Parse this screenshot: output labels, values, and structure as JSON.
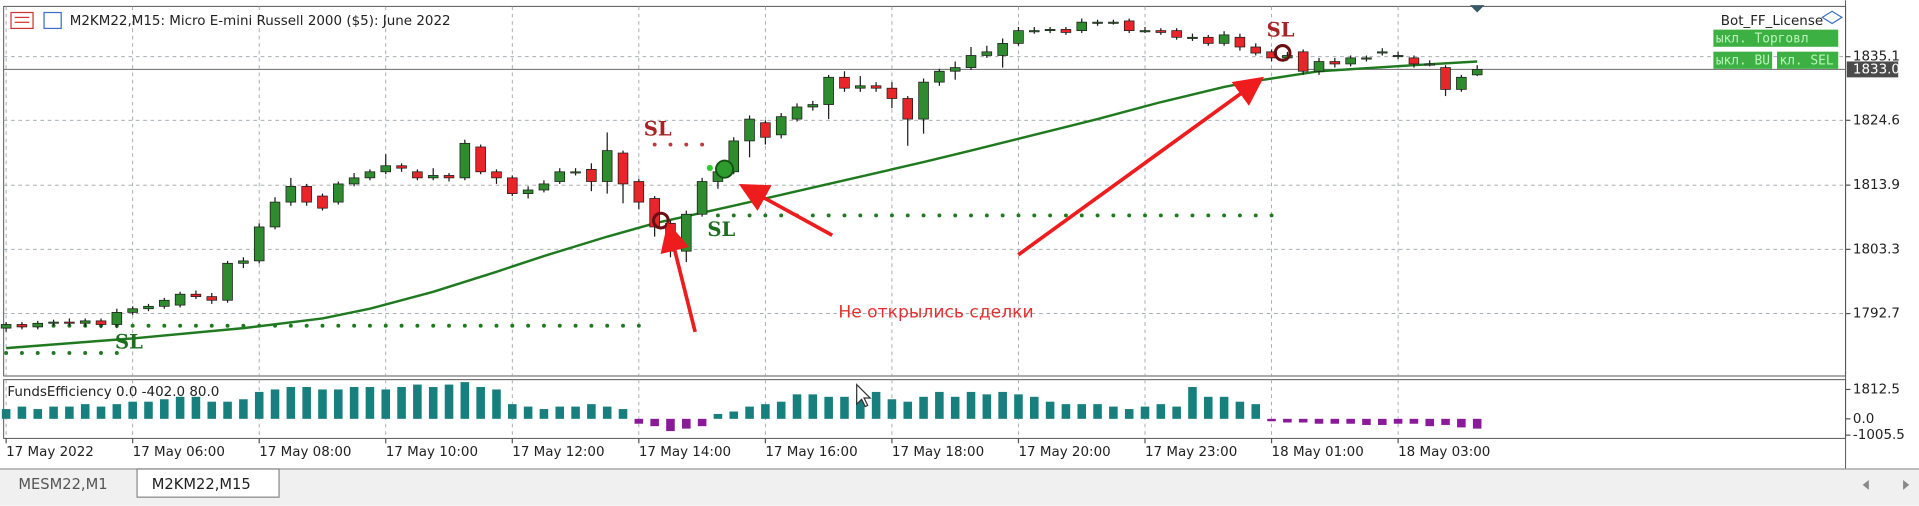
{
  "header": "M2KM22,M15:  Micro E-mini Russell 2000 ($5): June 2022",
  "license": "Bot_FF_License",
  "buttons": [
    "ыкл. Торговл",
    "ыкл. BU",
    "кл. SEL"
  ],
  "annotations": [
    "SL",
    "SL",
    "SL",
    "SL",
    "Не открылись сделки"
  ],
  "tabs": [
    "MESM22,M1",
    "M2KM22,M15"
  ],
  "chart_data": [
    {
      "type": "candlestick",
      "up_color": "#2e8b2e",
      "down_color": "#e8262a",
      "open": [
        1790.3,
        1790.9,
        1790.5,
        1791.1,
        1791.3,
        1791.1,
        1791.5,
        1790.9,
        1792.9,
        1793.5,
        1793.9,
        1794.1,
        1795.9,
        1795.5,
        1794.9,
        1801.0,
        1801.4,
        1807.0,
        1811.1,
        1813.7,
        1812.1,
        1811.1,
        1814.1,
        1815.1,
        1816.1,
        1817.1,
        1816.1,
        1815.1,
        1815.5,
        1815.1,
        1820.2,
        1816.1,
        1815.1,
        1812.5,
        1813.1,
        1814.5,
        1816.1,
        1816.5,
        1814.5,
        1819.2,
        1814.5,
        1811.7,
        1807.6,
        1803.0,
        1809.1,
        1814.5,
        1816.1,
        1821.2,
        1824.2,
        1822.2,
        1824.8,
        1826.8,
        1827.2,
        1831.7,
        1829.9,
        1830.3,
        1829.9,
        1828.2,
        1824.8,
        1830.9,
        1832.7,
        1833.3,
        1835.3,
        1835.3,
        1837.3,
        1839.4,
        1839.4,
        1839.6,
        1839.4,
        1840.8,
        1840.8,
        1841.0,
        1839.4,
        1839.4,
        1839.4,
        1838.3,
        1838.3,
        1837.3,
        1838.3,
        1836.7,
        1835.9,
        1834.9,
        1835.9,
        1832.7,
        1834.3,
        1833.9,
        1834.9,
        1835.9,
        1835.3,
        1834.9,
        1833.9,
        1833.3,
        1829.7,
        1832.1
      ],
      "high": [
        1791.3,
        1791.3,
        1791.5,
        1791.7,
        1791.9,
        1791.9,
        1791.9,
        1793.5,
        1793.9,
        1794.3,
        1795.3,
        1796.3,
        1796.5,
        1796.1,
        1801.4,
        1802.0,
        1807.6,
        1811.9,
        1815.1,
        1814.1,
        1812.5,
        1814.5,
        1815.9,
        1816.5,
        1819.0,
        1817.5,
        1816.5,
        1816.7,
        1815.9,
        1821.4,
        1820.6,
        1816.5,
        1815.5,
        1813.7,
        1814.7,
        1816.7,
        1816.7,
        1817.5,
        1822.6,
        1819.6,
        1814.9,
        1812.1,
        1808.1,
        1809.7,
        1815.1,
        1816.9,
        1821.8,
        1825.4,
        1824.6,
        1825.8,
        1827.4,
        1827.8,
        1832.1,
        1832.7,
        1831.9,
        1830.9,
        1830.9,
        1828.6,
        1831.5,
        1833.1,
        1834.3,
        1836.7,
        1836.9,
        1838.1,
        1840.0,
        1840.0,
        1840.0,
        1840.0,
        1841.4,
        1841.2,
        1841.2,
        1841.4,
        1840.0,
        1839.8,
        1839.8,
        1838.9,
        1838.7,
        1839.3,
        1838.9,
        1837.3,
        1836.3,
        1835.9,
        1836.3,
        1834.9,
        1834.9,
        1835.3,
        1835.3,
        1836.5,
        1835.9,
        1835.3,
        1834.5,
        1833.7,
        1832.1,
        1833.7
      ],
      "low": [
        1789.7,
        1790.1,
        1790.1,
        1790.7,
        1790.7,
        1790.5,
        1790.3,
        1790.3,
        1792.5,
        1793.1,
        1793.5,
        1793.7,
        1795.1,
        1794.3,
        1794.5,
        1800.2,
        1801.0,
        1806.6,
        1810.5,
        1810.5,
        1809.7,
        1810.7,
        1813.7,
        1814.7,
        1815.7,
        1816.1,
        1814.7,
        1814.7,
        1814.5,
        1814.7,
        1815.7,
        1814.1,
        1812.1,
        1811.7,
        1812.7,
        1814.1,
        1815.5,
        1812.9,
        1812.5,
        1810.9,
        1809.9,
        1805.4,
        1802.0,
        1801.2,
        1808.7,
        1813.3,
        1815.7,
        1818.5,
        1820.6,
        1821.6,
        1824.4,
        1826.2,
        1824.8,
        1829.3,
        1829.3,
        1829.3,
        1826.6,
        1820.4,
        1822.4,
        1830.3,
        1831.3,
        1832.9,
        1834.9,
        1833.3,
        1836.9,
        1838.9,
        1839.0,
        1838.7,
        1839.0,
        1840.2,
        1840.4,
        1839.0,
        1839.0,
        1838.7,
        1837.9,
        1837.7,
        1836.9,
        1836.9,
        1836.1,
        1835.3,
        1834.3,
        1834.5,
        1832.1,
        1832.1,
        1833.3,
        1833.5,
        1834.3,
        1835.3,
        1834.7,
        1833.3,
        1833.5,
        1828.6,
        1829.3,
        1831.9
      ],
      "close": [
        1790.9,
        1790.5,
        1791.1,
        1791.3,
        1791.1,
        1791.5,
        1790.9,
        1792.9,
        1793.5,
        1793.9,
        1794.9,
        1795.9,
        1795.5,
        1794.9,
        1801.0,
        1801.4,
        1807.0,
        1811.1,
        1813.7,
        1811.1,
        1810.1,
        1814.1,
        1815.1,
        1816.1,
        1817.1,
        1816.7,
        1815.1,
        1815.5,
        1815.1,
        1820.8,
        1816.1,
        1815.1,
        1812.5,
        1813.1,
        1814.1,
        1816.1,
        1816.1,
        1814.5,
        1819.6,
        1814.1,
        1811.1,
        1807.0,
        1803.0,
        1809.1,
        1814.5,
        1816.1,
        1821.2,
        1824.8,
        1821.8,
        1825.2,
        1826.8,
        1827.2,
        1831.7,
        1829.9,
        1830.3,
        1829.9,
        1828.2,
        1824.8,
        1830.9,
        1832.7,
        1833.3,
        1835.3,
        1835.9,
        1837.3,
        1839.4,
        1839.4,
        1839.6,
        1839.1,
        1840.8,
        1840.8,
        1840.8,
        1839.4,
        1839.4,
        1839.1,
        1838.3,
        1838.3,
        1837.3,
        1838.7,
        1836.7,
        1835.7,
        1834.9,
        1835.3,
        1832.7,
        1834.3,
        1833.9,
        1834.9,
        1834.9,
        1835.9,
        1835.3,
        1833.9,
        1833.9,
        1829.7,
        1831.7,
        1833.0
      ],
      "ylim": [
        1782.4,
        1843.4
      ],
      "yticks": [
        1835.1,
        1824.6,
        1813.9,
        1803.3,
        1792.7
      ],
      "last_price": {
        "value": 1833.0,
        "label": "1833.0"
      },
      "xticks": [
        {
          "value": 0,
          "label": "17 May 2022"
        },
        {
          "value": 8,
          "label": "17 May 06:00"
        },
        {
          "value": 16,
          "label": "17 May 08:00"
        },
        {
          "value": 24,
          "label": "17 May 10:00"
        },
        {
          "value": 32,
          "label": "17 May 12:00"
        },
        {
          "value": 40,
          "label": "17 May 14:00"
        },
        {
          "value": 48,
          "label": "17 May 16:00"
        },
        {
          "value": 56,
          "label": "17 May 18:00"
        },
        {
          "value": 64,
          "label": "17 May 20:00"
        },
        {
          "value": 72,
          "label": "17 May 23:00"
        },
        {
          "value": 80,
          "label": "18 May 01:00"
        },
        {
          "value": 88,
          "label": "18 May 03:00"
        }
      ],
      "grid": true,
      "ma": {
        "color": "#1f7a1f",
        "x": [
          0,
          8,
          15,
          20,
          23,
          27,
          31,
          34,
          38,
          41,
          46,
          50,
          54,
          58,
          61,
          65,
          69,
          73,
          77,
          79,
          83,
          89,
          93
        ],
        "values": [
          1787.0,
          1788.6,
          1790.3,
          1791.9,
          1793.5,
          1796.3,
          1799.6,
          1802.2,
          1805.4,
          1807.6,
          1810.5,
          1812.9,
          1815.3,
          1817.7,
          1819.6,
          1822.2,
          1824.8,
          1827.6,
          1830.1,
          1831.1,
          1832.7,
          1833.7,
          1834.3
        ]
      },
      "levels": [
        {
          "value": 1790.7,
          "from": 0,
          "to": 40,
          "color": "#1f7a1f"
        },
        {
          "value": 1786.2,
          "from": 0,
          "to": 7,
          "color": "#1f7a1f"
        },
        {
          "value": 1808.9,
          "from": 45,
          "to": 80,
          "color": "#1f7a1f"
        },
        {
          "value": 1820.6,
          "from": 41,
          "to": 44,
          "color": "#c0393b"
        }
      ]
    },
    {
      "type": "bar",
      "title": "FundsEfficiency 0.0 -402.0 80.0",
      "up_color": "#17807e",
      "down_color": "#8b1a9b",
      "values": [
        604,
        755,
        604,
        755,
        755,
        906,
        755,
        906,
        1057,
        1057,
        1208,
        1359,
        1359,
        1057,
        1057,
        1208,
        1661,
        1812,
        1963,
        1963,
        1812,
        1812,
        1963,
        1963,
        1812,
        1963,
        2114,
        1963,
        2114,
        2265,
        1963,
        1812,
        906,
        755,
        604,
        755,
        755,
        906,
        755,
        604,
        -302,
        -453,
        -755,
        -604,
        -453,
        302,
        453,
        755,
        906,
        1057,
        1510,
        1510,
        1359,
        1359,
        1510,
        1661,
        1208,
        1057,
        1359,
        1661,
        1359,
        1661,
        1510,
        1661,
        1510,
        1359,
        1057,
        906,
        906,
        906,
        755,
        604,
        755,
        906,
        755,
        1963,
        1359,
        1359,
        1057,
        906,
        -151,
        -227,
        -227,
        -302,
        -302,
        -302,
        -378,
        -378,
        -302,
        -302,
        -453,
        -378,
        -529,
        -604
      ],
      "ylim": [
        -1208,
        2416
      ],
      "yticks": [
        1812.5,
        {
          "value": 0,
          "label": "0.0"
        },
        -1005.5
      ]
    }
  ]
}
